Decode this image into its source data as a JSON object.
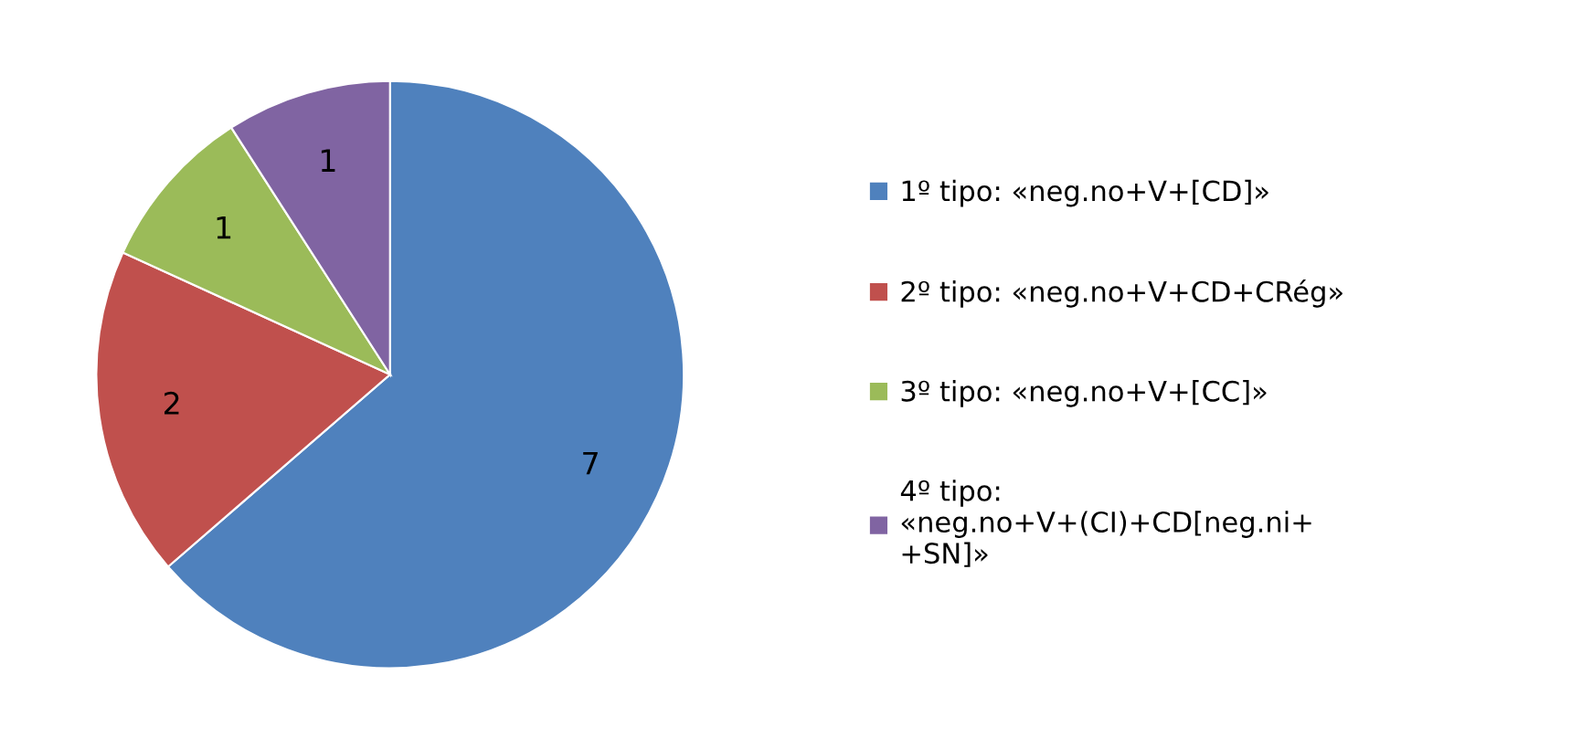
{
  "chart_data": {
    "type": "pie",
    "categories": [
      "1º tipo: «neg.no+V+[CD]»",
      "2º tipo: «neg.no+V+CD+CRég»",
      "3º tipo: «neg.no+V+[CC]»",
      "4º tipo:\n«neg.no+V+(CI)+CD[neg.ni+\n+SN]»"
    ],
    "values": [
      7,
      2,
      1,
      1
    ],
    "colors": [
      "#4f81bd",
      "#c0504d",
      "#9bbb59",
      "#8064a2"
    ],
    "data_labels": true,
    "legend": "right"
  }
}
